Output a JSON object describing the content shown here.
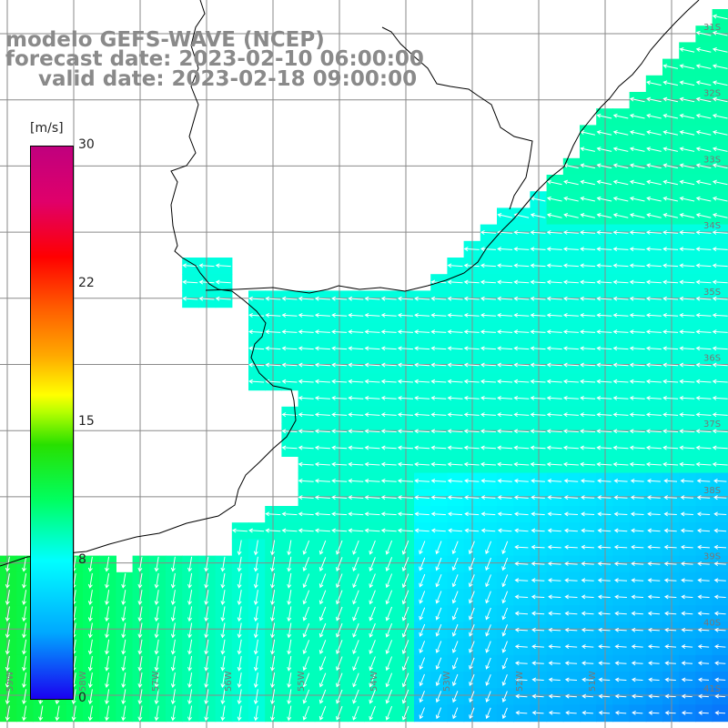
{
  "title": {
    "line1": "modelo GEFS-WAVE (NCEP)",
    "line2": "forecast date: 2023-02-10 06:00:00",
    "line3": "valid date: 2023-02-18 09:00:00"
  },
  "colorbar": {
    "unit": "[m/s]",
    "min": 0,
    "max": 30,
    "tick_labels": [
      "30",
      "22",
      "15",
      "8",
      "0"
    ],
    "tick_values": [
      30,
      22,
      15,
      8,
      0
    ],
    "colors": [
      "#1a00f0",
      "#00a8ff",
      "#00ffff",
      "#00ff60",
      "#28e000",
      "#ffff00",
      "#ffaa00",
      "#ff0000",
      "#c0007e"
    ]
  },
  "map": {
    "projection": "cylindrical lat/lon, 1 degree grid",
    "lon_range": [
      -60,
      -50
    ],
    "lat_range": [
      -41,
      -30
    ],
    "lat_labels": [
      "31S",
      "32S",
      "33S",
      "34S",
      "35S",
      "36S",
      "37S",
      "38S",
      "39S",
      "40S",
      "41S"
    ],
    "lon_labels": [
      "59W",
      "58W",
      "57W",
      "56W",
      "55W",
      "54W",
      "53W",
      "52W",
      "51W"
    ],
    "land_color": "#ffffff",
    "coastline_color": "#000000",
    "grid_color": "#8a8a8a",
    "arrow_color": "#ffffff"
  }
}
